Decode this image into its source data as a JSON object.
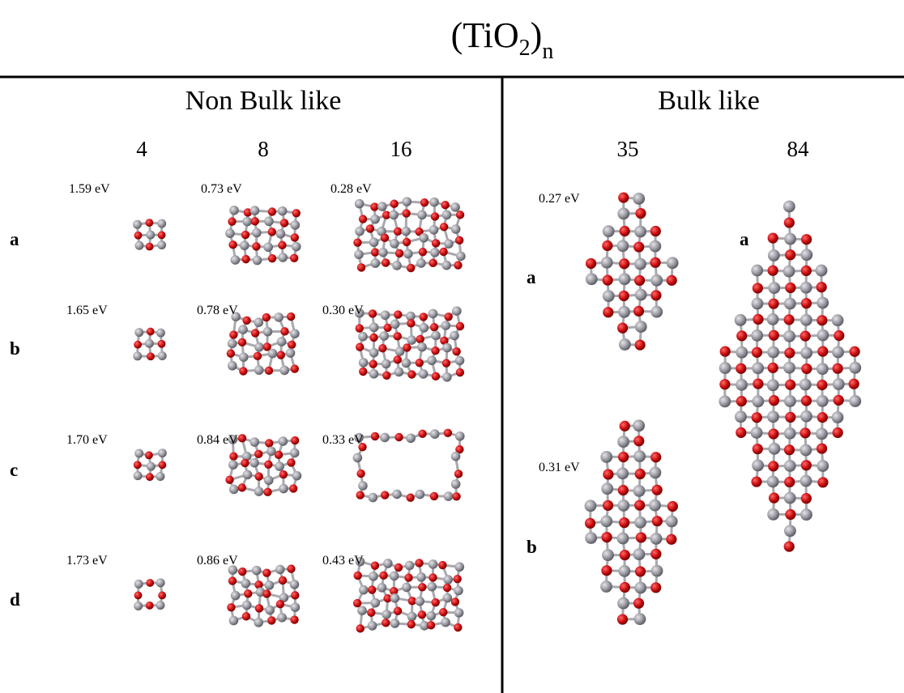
{
  "title": {
    "main": "(TiO",
    "subscript": "2",
    "close": ")",
    "outer_subscript": "n"
  },
  "non_bulk": {
    "heading": "Non Bulk like",
    "sizes": [
      "4",
      "8",
      "16"
    ],
    "rows": [
      {
        "label": "a",
        "energies": [
          "1.59 eV",
          "0.73 eV",
          "0.28 eV"
        ]
      },
      {
        "label": "b",
        "energies": [
          "1.65 eV",
          "0.78 eV",
          "0.30 eV"
        ]
      },
      {
        "label": "c",
        "energies": [
          "1.70 eV",
          "0.84 eV",
          "0.33 eV"
        ]
      },
      {
        "label": "d",
        "energies": [
          "1.73 eV",
          "0.86 eV",
          "0.43 eV"
        ]
      }
    ]
  },
  "bulk": {
    "heading": "Bulk like",
    "columns": [
      {
        "size": "35",
        "structures": [
          {
            "label": "a",
            "energy": "0.27 eV"
          },
          {
            "label": "b",
            "energy": "0.31 eV"
          }
        ]
      },
      {
        "size": "84",
        "structures": [
          {
            "label": "a"
          }
        ]
      }
    ]
  }
}
